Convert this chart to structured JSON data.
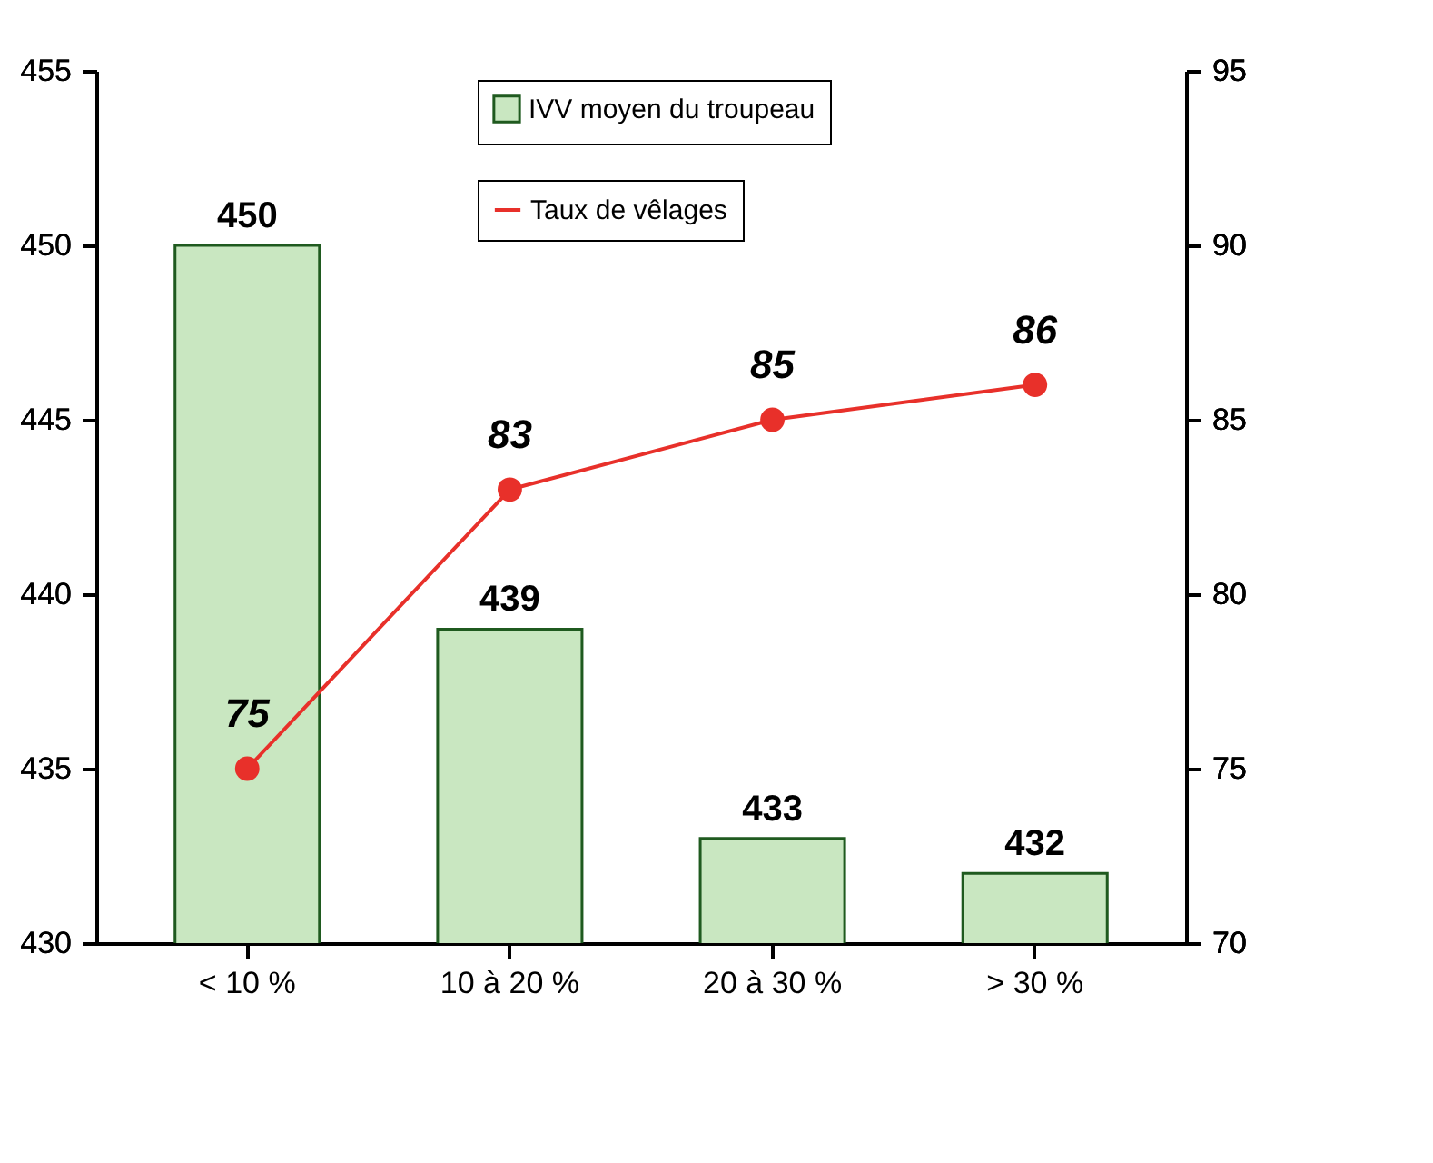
{
  "chart_data": {
    "type": "bar",
    "categories": [
      "< 10 %",
      "10 à 20 %",
      "20 à 30 %",
      "> 30 %"
    ],
    "series": [
      {
        "name": "IVV moyen du troupeau",
        "color": "#c9e7c1",
        "values": [
          450,
          439,
          433,
          432
        ]
      },
      {
        "name": "Taux de vêlages",
        "type": "line",
        "axis": "y2",
        "color": "#e8302a",
        "values": [
          75,
          83,
          85,
          86
        ]
      }
    ],
    "ylim": [
      430,
      455
    ],
    "yticks": [
      430,
      435,
      440,
      445,
      450,
      455
    ],
    "y2lim": [
      70,
      95
    ],
    "y2ticks": [
      70,
      75,
      80,
      85,
      90,
      95
    ],
    "data_labels": true,
    "grid": false,
    "legend": "top",
    "marker": "circle",
    "line_style": "solid"
  }
}
